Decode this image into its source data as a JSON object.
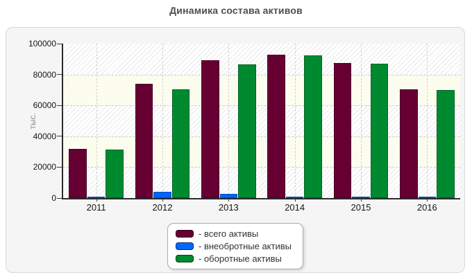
{
  "page": {
    "title": "Динамика состава активов"
  },
  "chart_data": {
    "type": "bar",
    "title": "Динамика состава активов",
    "xlabel": "",
    "ylabel": "тыс.",
    "ylim": [
      0,
      100000
    ],
    "yticks": [
      0,
      20000,
      40000,
      60000,
      80000,
      100000
    ],
    "grid": "dashed horizontal and vertical gridlines, hatched alternating bands",
    "legend_position": "bottom-center",
    "categories": [
      "2011",
      "2012",
      "2013",
      "2014",
      "2015",
      "2016"
    ],
    "series": [
      {
        "name": "- всего активы",
        "color": "#660033",
        "values": [
          31900,
          74200,
          89100,
          92900,
          87600,
          70400
        ]
      },
      {
        "name": "- внеобротные активы",
        "color": "#0066ff",
        "values": [
          700,
          4000,
          2600,
          500,
          400,
          400
        ]
      },
      {
        "name": "- оборотные активы",
        "color": "#008a30",
        "values": [
          31200,
          70200,
          86500,
          92400,
          87200,
          70000
        ]
      }
    ]
  }
}
